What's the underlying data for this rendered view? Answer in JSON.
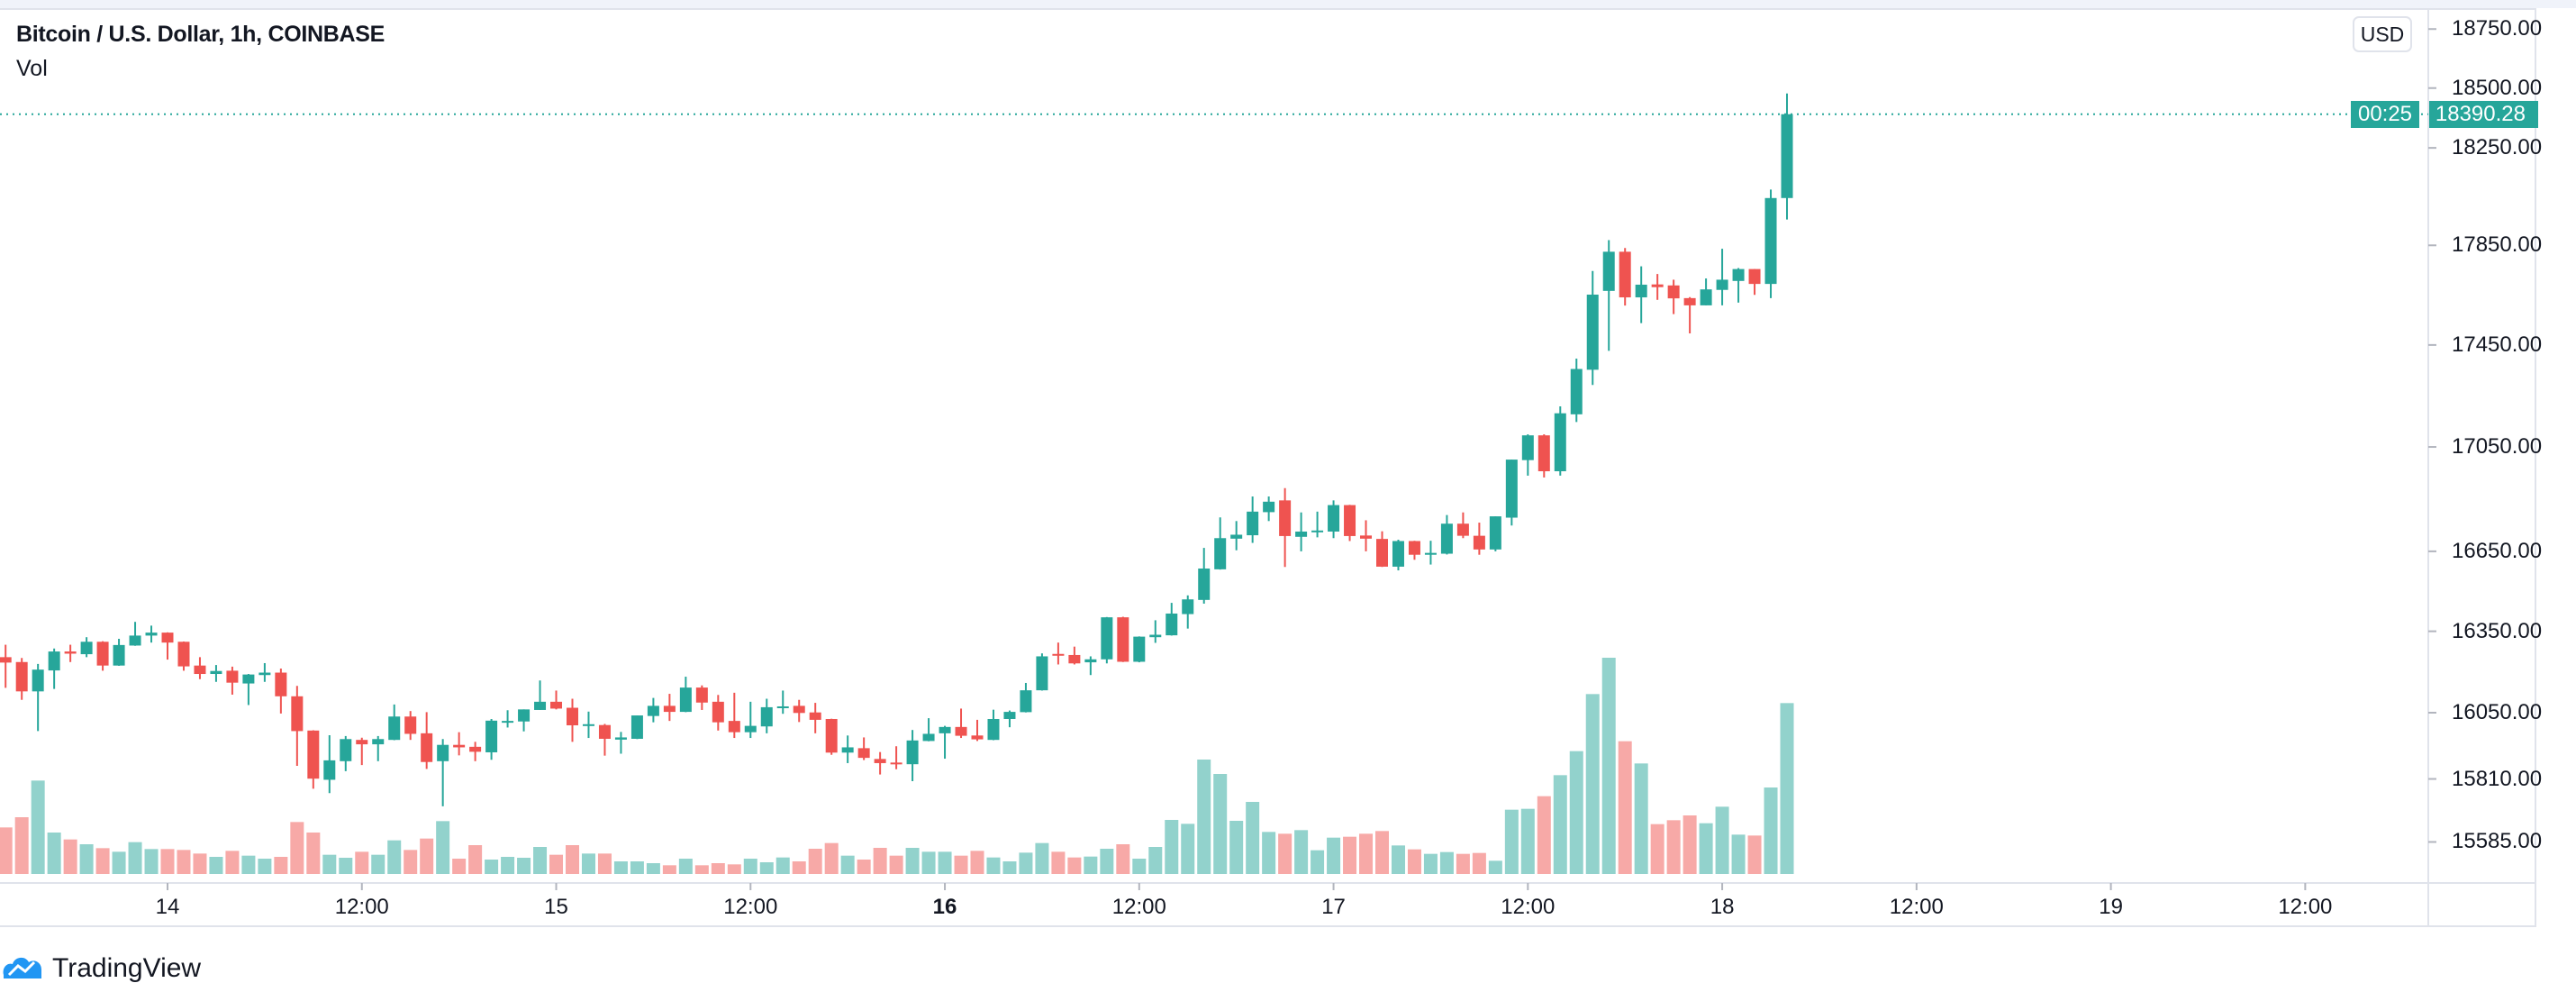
{
  "header": {
    "title": "Bitcoin / U.S. Dollar, 1h, COINBASE",
    "indicator": "Vol"
  },
  "currency_button": "USD",
  "last_price": {
    "value": "18390.28",
    "countdown": "00:25"
  },
  "footer": {
    "brand": "TradingView"
  },
  "colors": {
    "up": "#26a69a",
    "down": "#ef5350",
    "up_volume": "#92d2cc",
    "down_volume": "#f7a9a7",
    "axis_line": "#e0e3eb",
    "brand": "#2196f3"
  },
  "chart_data": {
    "type": "candlestick",
    "title": "Bitcoin / U.S. Dollar, 1h, COINBASE",
    "y_scale": "log",
    "grid": false,
    "price_ticks": [
      "18750.00",
      "18500.00",
      "18250.00",
      "17850.00",
      "17450.00",
      "17050.00",
      "16650.00",
      "16350.00",
      "16050.00",
      "15810.00",
      "15585.00"
    ],
    "time_ticks": [
      {
        "label": "14",
        "time": "14 00:00",
        "bold": false
      },
      {
        "label": "12:00",
        "time": "14 12:00",
        "bold": false
      },
      {
        "label": "15",
        "time": "15 00:00",
        "bold": false
      },
      {
        "label": "12:00",
        "time": "15 12:00",
        "bold": false
      },
      {
        "label": "16",
        "time": "16 00:00",
        "bold": true
      },
      {
        "label": "12:00",
        "time": "16 12:00",
        "bold": false
      },
      {
        "label": "17",
        "time": "17 00:00",
        "bold": false
      },
      {
        "label": "12:00",
        "time": "17 12:00",
        "bold": false
      },
      {
        "label": "18",
        "time": "18 00:00",
        "bold": false
      },
      {
        "label": "12:00",
        "time": "18 12:00",
        "bold": false
      },
      {
        "label": "19",
        "time": "19 00:00",
        "bold": false
      },
      {
        "label": "12:00",
        "time": "19 12:00",
        "bold": false
      }
    ],
    "candle_fields": [
      "time",
      "open",
      "high",
      "low",
      "close",
      "volume"
    ],
    "candles": [
      [
        "13 14:00",
        16254,
        16300,
        16141,
        16234,
        155
      ],
      [
        "13 15:00",
        16236,
        16251,
        16097,
        16128,
        189
      ],
      [
        "13 16:00",
        16128,
        16229,
        15983,
        16208,
        311
      ],
      [
        "13 17:00",
        16205,
        16286,
        16137,
        16275,
        138
      ],
      [
        "13 18:00",
        16275,
        16300,
        16236,
        16267,
        115
      ],
      [
        "13 19:00",
        16265,
        16328,
        16254,
        16311,
        99
      ],
      [
        "13 20:00",
        16311,
        16313,
        16204,
        16223,
        86
      ],
      [
        "13 21:00",
        16223,
        16322,
        16222,
        16299,
        74
      ],
      [
        "13 22:00",
        16297,
        16385,
        16296,
        16334,
        106
      ],
      [
        "13 23:00",
        16334,
        16371,
        16308,
        16345,
        83
      ],
      [
        "14 00:00",
        16345,
        16346,
        16245,
        16308,
        83
      ],
      [
        "14 01:00",
        16311,
        16312,
        16204,
        16220,
        80
      ],
      [
        "14 02:00",
        16223,
        16254,
        16173,
        16192,
        68
      ],
      [
        "14 03:00",
        16192,
        16225,
        16163,
        16203,
        57
      ],
      [
        "14 04:00",
        16204,
        16219,
        16116,
        16160,
        77
      ],
      [
        "14 05:00",
        16157,
        16192,
        16078,
        16190,
        61
      ],
      [
        "14 06:00",
        16188,
        16232,
        16163,
        16197,
        51
      ],
      [
        "14 07:00",
        16197,
        16212,
        16047,
        16110,
        57
      ],
      [
        "14 08:00",
        16110,
        16148,
        15857,
        15983,
        173
      ],
      [
        "14 09:00",
        15985,
        15986,
        15775,
        15811,
        138
      ],
      [
        "14 10:00",
        15807,
        15968,
        15759,
        15877,
        64
      ],
      [
        "14 11:00",
        15874,
        15965,
        15838,
        15954,
        54
      ],
      [
        "14 12:00",
        15951,
        15959,
        15860,
        15935,
        74
      ],
      [
        "14 13:00",
        15935,
        15965,
        15874,
        15954,
        64
      ],
      [
        "14 14:00",
        15951,
        16080,
        15950,
        16036,
        112
      ],
      [
        "14 15:00",
        16036,
        16056,
        15951,
        15973,
        80
      ],
      [
        "14 16:00",
        15975,
        16052,
        15846,
        15871,
        118
      ],
      [
        "14 17:00",
        15874,
        15954,
        15712,
        15933,
        176
      ],
      [
        "14 18:00",
        15933,
        15979,
        15895,
        15924,
        51
      ],
      [
        "14 19:00",
        15926,
        15944,
        15874,
        15908,
        96
      ],
      [
        "14 20:00",
        15906,
        16027,
        15879,
        16021,
        48
      ],
      [
        "14 21:00",
        16015,
        16059,
        15996,
        16020,
        57
      ],
      [
        "14 22:00",
        16018,
        16062,
        15982,
        16062,
        54
      ],
      [
        "14 23:00",
        16060,
        16168,
        16060,
        16090,
        90
      ],
      [
        "15 00:00",
        16090,
        16131,
        16062,
        16065,
        64
      ],
      [
        "15 01:00",
        16068,
        16101,
        15944,
        16004,
        96
      ],
      [
        "15 02:00",
        16002,
        16054,
        15958,
        16008,
        68
      ],
      [
        "15 03:00",
        16005,
        16009,
        15894,
        15955,
        68
      ],
      [
        "15 04:00",
        15952,
        15980,
        15901,
        15960,
        42
      ],
      [
        "15 05:00",
        15955,
        16040,
        15954,
        16040,
        42
      ],
      [
        "15 06:00",
        16038,
        16104,
        16015,
        16075,
        36
      ],
      [
        "15 07:00",
        16075,
        16119,
        16020,
        16053,
        29
      ],
      [
        "15 08:00",
        16053,
        16182,
        16052,
        16142,
        51
      ],
      [
        "15 09:00",
        16142,
        16150,
        16060,
        16087,
        29
      ],
      [
        "15 10:00",
        16090,
        16115,
        15985,
        16015,
        36
      ],
      [
        "15 11:00",
        16020,
        16123,
        15958,
        15979,
        32
      ],
      [
        "15 12:00",
        15979,
        16090,
        15958,
        16002,
        51
      ],
      [
        "15 13:00",
        16000,
        16101,
        15975,
        16070,
        39
      ],
      [
        "15 14:00",
        16067,
        16131,
        16046,
        16073,
        55
      ],
      [
        "15 15:00",
        16075,
        16097,
        16016,
        16049,
        42
      ],
      [
        "15 16:00",
        16051,
        16086,
        15975,
        16024,
        84
      ],
      [
        "15 17:00",
        16027,
        16028,
        15897,
        15905,
        103
      ],
      [
        "15 18:00",
        15905,
        15967,
        15867,
        15924,
        61
      ],
      [
        "15 19:00",
        15921,
        15960,
        15878,
        15886,
        48
      ],
      [
        "15 20:00",
        15882,
        15907,
        15826,
        15867,
        87
      ],
      [
        "15 21:00",
        15869,
        15928,
        15845,
        15863,
        61
      ],
      [
        "15 22:00",
        15863,
        15987,
        15802,
        15949,
        87
      ],
      [
        "15 23:00",
        15947,
        16030,
        15946,
        15973,
        74
      ],
      [
        "16 00:00",
        15975,
        16002,
        15883,
        15998,
        74
      ],
      [
        "16 01:00",
        15998,
        16065,
        15958,
        15966,
        61
      ],
      [
        "16 02:00",
        15967,
        16024,
        15947,
        15953,
        77
      ],
      [
        "16 03:00",
        15951,
        16061,
        15950,
        16027,
        55
      ],
      [
        "16 04:00",
        16027,
        16058,
        15997,
        16053,
        42
      ],
      [
        "16 05:00",
        16052,
        16159,
        16051,
        16132,
        71
      ],
      [
        "16 06:00",
        16132,
        16268,
        16131,
        16257,
        103
      ],
      [
        "16 07:00",
        16266,
        16308,
        16227,
        16260,
        74
      ],
      [
        "16 08:00",
        16262,
        16293,
        16227,
        16231,
        55
      ],
      [
        "16 09:00",
        16235,
        16257,
        16188,
        16246,
        58
      ],
      [
        "16 10:00",
        16246,
        16403,
        16231,
        16402,
        84
      ],
      [
        "16 11:00",
        16402,
        16404,
        16236,
        16237,
        99
      ],
      [
        "16 12:00",
        16237,
        16331,
        16235,
        16330,
        51
      ],
      [
        "16 13:00",
        16328,
        16391,
        16307,
        16337,
        90
      ],
      [
        "16 14:00",
        16335,
        16456,
        16334,
        16416,
        180
      ],
      [
        "16 15:00",
        16414,
        16484,
        16360,
        16469,
        167
      ],
      [
        "16 16:00",
        16467,
        16663,
        16453,
        16585,
        381
      ],
      [
        "16 17:00",
        16582,
        16779,
        16581,
        16700,
        333
      ],
      [
        "16 18:00",
        16698,
        16765,
        16654,
        16713,
        177
      ],
      [
        "16 19:00",
        16711,
        16859,
        16682,
        16801,
        240
      ],
      [
        "16 20:00",
        16799,
        16859,
        16765,
        16839,
        140
      ],
      [
        "16 21:00",
        16844,
        16891,
        16591,
        16708,
        134
      ],
      [
        "16 22:00",
        16705,
        16798,
        16650,
        16725,
        146
      ],
      [
        "16 23:00",
        16724,
        16801,
        16703,
        16729,
        79
      ],
      [
        "17 00:00",
        16725,
        16844,
        16700,
        16826,
        121
      ],
      [
        "17 01:00",
        16826,
        16827,
        16689,
        16708,
        124
      ],
      [
        "17 02:00",
        16710,
        16768,
        16650,
        16698,
        134
      ],
      [
        "17 03:00",
        16697,
        16726,
        16591,
        16592,
        143
      ],
      [
        "17 04:00",
        16592,
        16694,
        16578,
        16689,
        95
      ],
      [
        "17 05:00",
        16689,
        16690,
        16618,
        16637,
        82
      ],
      [
        "17 06:00",
        16637,
        16690,
        16600,
        16644,
        67
      ],
      [
        "17 07:00",
        16641,
        16788,
        16638,
        16755,
        73
      ],
      [
        "17 08:00",
        16755,
        16798,
        16700,
        16709,
        67
      ],
      [
        "17 09:00",
        16709,
        16759,
        16637,
        16657,
        70
      ],
      [
        "17 10:00",
        16657,
        16783,
        16650,
        16783,
        44
      ],
      [
        "17 11:00",
        16778,
        17001,
        16748,
        17001,
        214
      ],
      [
        "17 12:00",
        16999,
        17099,
        16939,
        17095,
        217
      ],
      [
        "17 13:00",
        17095,
        17099,
        16932,
        16956,
        259
      ],
      [
        "17 14:00",
        16956,
        17208,
        16939,
        17181,
        329
      ],
      [
        "17 15:00",
        17177,
        17396,
        17147,
        17355,
        409
      ],
      [
        "17 16:00",
        17352,
        17746,
        17292,
        17651,
        599
      ],
      [
        "17 17:00",
        17666,
        17871,
        17427,
        17824,
        720
      ],
      [
        "17 18:00",
        17824,
        17839,
        17607,
        17640,
        442
      ],
      [
        "17 19:00",
        17640,
        17765,
        17537,
        17691,
        368
      ],
      [
        "17 20:00",
        17692,
        17734,
        17630,
        17681,
        166
      ],
      [
        "17 21:00",
        17688,
        17711,
        17573,
        17636,
        179
      ],
      [
        "17 22:00",
        17637,
        17641,
        17496,
        17608,
        195
      ],
      [
        "17 23:00",
        17608,
        17716,
        17608,
        17672,
        169
      ],
      [
        "18 00:00",
        17670,
        17836,
        17608,
        17711,
        224
      ],
      [
        "18 01:00",
        17706,
        17758,
        17619,
        17754,
        131
      ],
      [
        "18 02:00",
        17754,
        17754,
        17650,
        17694,
        128
      ],
      [
        "18 03:00",
        17694,
        18078,
        17637,
        18043,
        288
      ],
      [
        "18 04:00",
        18043,
        18477,
        17955,
        18390.28,
        569
      ]
    ]
  }
}
